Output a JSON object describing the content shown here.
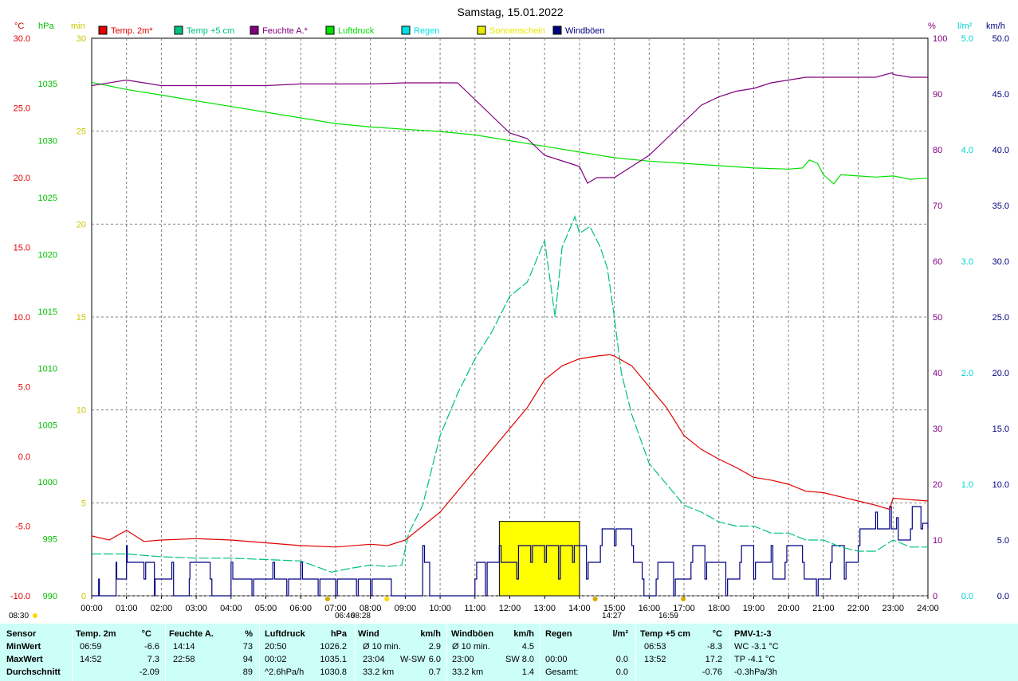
{
  "chart_data": {
    "type": "line",
    "title": "Samstag, 15.01.2022",
    "axes": {
      "x": {
        "range": [
          0,
          24
        ],
        "tick_labels": [
          "00:00",
          "01:00",
          "02:00",
          "03:00",
          "04:00",
          "05:00",
          "06:00",
          "07:00",
          "08:00",
          "09:00",
          "10:00",
          "11:00",
          "12:00",
          "13:00",
          "14:00",
          "15:00",
          "16:00",
          "17:00",
          "18:00",
          "19:00",
          "20:00",
          "21:00",
          "22:00",
          "23:00",
          "24:00"
        ]
      },
      "temp": {
        "unit": "°C",
        "range": [
          -10,
          30
        ],
        "ticks": [
          "30.0",
          "25.0",
          "20.0",
          "15.0",
          "10.0",
          "5.0",
          "0.0",
          "-5.0",
          "-10.0"
        ],
        "color": "#e00000"
      },
      "pressure": {
        "unit": "hPa",
        "range": [
          990,
          1039
        ],
        "ticks": [
          "1035",
          "1030",
          "1025",
          "1020",
          "1015",
          "1010",
          "1005",
          "1000",
          "995",
          "990"
        ],
        "color": "#00c000"
      },
      "sunshine": {
        "unit": "min",
        "range": [
          0,
          30
        ],
        "ticks": [
          "30",
          "25",
          "20",
          "15",
          "10",
          "5",
          "0"
        ],
        "color": "#e8e800"
      },
      "humidity": {
        "unit": "%",
        "range": [
          0,
          100
        ],
        "ticks": [
          "100",
          "90",
          "80",
          "70",
          "60",
          "50",
          "40",
          "30",
          "20",
          "10",
          "0"
        ],
        "color": "#800080"
      },
      "rain": {
        "unit": "l/m²",
        "range": [
          0,
          5
        ],
        "ticks": [
          "5.0",
          "4.0",
          "3.0",
          "2.0",
          "1.0",
          "0.0"
        ],
        "color": "#00e0e0"
      },
      "wind": {
        "unit": "km/h",
        "range": [
          0,
          50
        ],
        "ticks": [
          "50.0",
          "45.0",
          "40.0",
          "35.0",
          "30.0",
          "25.0",
          "20.0",
          "15.0",
          "10.0",
          "5.0",
          "0.0"
        ],
        "color": "#000080"
      }
    },
    "legend": [
      {
        "name": "Temp. 2m*",
        "color": "#e00000"
      },
      {
        "name": "Temp +5 cm",
        "color": "#00c080"
      },
      {
        "name": "Feuchte A.*",
        "color": "#800080"
      },
      {
        "name": "Luftdruck",
        "color": "#00e000"
      },
      {
        "name": "Regen",
        "color": "#00e0e0"
      },
      {
        "name": "Sonnenschein",
        "color": "#e8e800"
      },
      {
        "name": "Windböen",
        "color": "#000080"
      }
    ],
    "series": [
      {
        "name": "Temp. 2m*",
        "axis": "temp",
        "color": "#e00000",
        "x": [
          0,
          0.5,
          1,
          1.5,
          2,
          3,
          4,
          5,
          6,
          7,
          8,
          8.5,
          9,
          9.5,
          10,
          10.5,
          11,
          11.5,
          12,
          12.5,
          13,
          13.5,
          14,
          14.5,
          14.87,
          15,
          15.5,
          16,
          16.5,
          17,
          17.5,
          18,
          18.5,
          19,
          19.5,
          20,
          20.5,
          21,
          21.5,
          22,
          22.5,
          22.9,
          23,
          23.5,
          24
        ],
        "y": [
          -5.7,
          -6.0,
          -5.3,
          -6.1,
          -6.0,
          -5.9,
          -6.0,
          -6.2,
          -6.4,
          -6.5,
          -6.3,
          -6.4,
          -6.0,
          -5.0,
          -4.0,
          -2.5,
          -1.0,
          0.5,
          2.0,
          3.5,
          5.5,
          6.5,
          7.0,
          7.2,
          7.3,
          7.2,
          6.5,
          5.0,
          3.5,
          1.5,
          0.5,
          -0.2,
          -0.8,
          -1.5,
          -1.7,
          -2.0,
          -2.5,
          -2.6,
          -2.9,
          -3.2,
          -3.5,
          -3.8,
          -3.0,
          -3.1,
          -3.2
        ]
      },
      {
        "name": "Temp +5 cm",
        "axis": "temp",
        "color": "#00c080",
        "x": [
          0,
          1,
          2,
          3,
          4,
          5,
          6,
          6.88,
          7.5,
          8,
          8.5,
          8.9,
          9.1,
          9.5,
          10,
          10.5,
          11,
          11.5,
          12,
          12.5,
          13,
          13.3,
          13.5,
          13.87,
          14,
          14.3,
          14.6,
          14.8,
          15,
          15.2,
          15.5,
          16,
          16.5,
          17,
          17.5,
          18,
          18.5,
          19,
          19.5,
          20,
          20.5,
          21,
          21.5,
          22,
          22.5,
          23,
          23.5,
          24
        ],
        "y": [
          -7.0,
          -7.0,
          -7.2,
          -7.3,
          -7.3,
          -7.4,
          -7.5,
          -8.3,
          -8.0,
          -7.8,
          -7.9,
          -7.8,
          -5.5,
          -3.5,
          1.5,
          4.5,
          7.0,
          9.0,
          11.5,
          12.5,
          15.5,
          10.0,
          15.0,
          17.2,
          16.0,
          16.5,
          15.0,
          13.5,
          10.0,
          6.0,
          3.0,
          -0.5,
          -2.0,
          -3.5,
          -4.0,
          -4.7,
          -5.0,
          -5.0,
          -5.5,
          -5.5,
          -6.0,
          -6.0,
          -6.5,
          -6.8,
          -6.8,
          -6.0,
          -6.5,
          -6.5
        ]
      },
      {
        "name": "Feuchte A.*",
        "axis": "humidity",
        "color": "#800080",
        "x": [
          0,
          1,
          2,
          3,
          4,
          5,
          6,
          7,
          8,
          9,
          10,
          10.5,
          11,
          11.5,
          12,
          12.5,
          13,
          13.5,
          14,
          14.23,
          14.5,
          15,
          15.5,
          16,
          16.5,
          17,
          17.5,
          18,
          18.5,
          19,
          19.5,
          20,
          20.5,
          21,
          21.5,
          22,
          22.5,
          22.97,
          23,
          23.5,
          24
        ],
        "y": [
          91.5,
          92.5,
          91.5,
          91.5,
          91.5,
          91.5,
          91.8,
          91.8,
          91.8,
          92.0,
          92.0,
          92.0,
          89.0,
          86.0,
          83.0,
          82.0,
          79.0,
          78.0,
          77.0,
          74.0,
          75.0,
          75.0,
          77.0,
          79.0,
          82.0,
          85.0,
          88.0,
          89.5,
          90.5,
          91.0,
          92.0,
          92.5,
          93.0,
          93.0,
          93.0,
          93.0,
          93.0,
          93.8,
          93.5,
          93.0,
          93.0
        ]
      },
      {
        "name": "Luftdruck",
        "axis": "pressure",
        "color": "#00e000",
        "x": [
          0,
          0.03,
          1,
          2,
          3,
          4,
          5,
          6,
          7,
          8,
          9,
          10,
          11,
          12,
          13,
          14,
          15,
          16,
          17,
          18,
          19,
          20,
          20.4,
          20.6,
          20.83,
          21,
          21.3,
          21.5,
          22,
          22.5,
          23,
          23.5,
          24
        ],
        "y": [
          1035.1,
          1035.1,
          1034.5,
          1034.0,
          1033.5,
          1033.0,
          1032.5,
          1032.0,
          1031.5,
          1031.2,
          1031.0,
          1030.8,
          1030.5,
          1030.0,
          1029.5,
          1029.0,
          1028.5,
          1028.2,
          1028.0,
          1027.8,
          1027.6,
          1027.5,
          1027.6,
          1028.3,
          1028.0,
          1027.0,
          1026.2,
          1027.0,
          1026.9,
          1026.8,
          1026.9,
          1026.6,
          1026.7
        ]
      },
      {
        "name": "Windböen",
        "axis": "wind",
        "type": "step",
        "color": "#000080",
        "x": [
          0,
          0.2,
          0.22,
          0.7,
          0.72,
          1.0,
          1.02,
          1.5,
          1.55,
          1.8,
          1.82,
          2.3,
          2.35,
          2.8,
          2.82,
          3.4,
          3.45,
          4.0,
          4.05,
          4.6,
          4.65,
          5.2,
          5.25,
          5.6,
          5.65,
          6.0,
          6.05,
          6.5,
          6.55,
          7.0,
          7.05,
          7.6,
          7.65,
          8.0,
          8.05,
          8.6,
          8.65,
          9.5,
          9.55,
          9.7,
          9.75,
          11.0,
          11.05,
          11.3,
          11.35,
          11.7,
          11.75,
          12.2,
          12.25,
          12.6,
          12.65,
          13.0,
          13.05,
          13.4,
          13.45,
          13.8,
          13.85,
          14.2,
          14.25,
          14.6,
          14.65,
          15.0,
          15.05,
          15.5,
          15.55,
          15.8,
          15.85,
          16.2,
          16.25,
          16.7,
          16.75,
          17.2,
          17.25,
          17.6,
          17.65,
          18.2,
          18.25,
          18.6,
          18.65,
          19.0,
          19.05,
          19.5,
          19.55,
          19.9,
          19.95,
          20.4,
          20.45,
          20.8,
          20.85,
          21.2,
          21.25,
          21.6,
          21.65,
          22.0,
          22.05,
          22.5,
          22.55,
          22.9,
          22.95,
          23.1,
          23.15,
          23.5,
          23.55,
          23.8,
          23.85,
          24
        ],
        "y": [
          0,
          1.5,
          0,
          3.0,
          1.5,
          4.5,
          3.0,
          1.5,
          3.0,
          0,
          1.5,
          3.0,
          0,
          1.5,
          3.0,
          1.5,
          0,
          3.0,
          1.5,
          0,
          1.5,
          3.0,
          1.5,
          0,
          1.5,
          3.0,
          1.5,
          0,
          1.5,
          0,
          1.5,
          0,
          1.5,
          0,
          1.5,
          0,
          0,
          4.5,
          3.0,
          0,
          0,
          1.5,
          3.0,
          0,
          3.0,
          4.5,
          3.0,
          1.5,
          4.5,
          3.0,
          4.5,
          3.0,
          4.5,
          1.5,
          4.5,
          3.0,
          4.5,
          1.5,
          3.0,
          4.5,
          6.0,
          4.5,
          6.0,
          4.5,
          3.0,
          1.5,
          0,
          1.5,
          3.0,
          0,
          1.5,
          3.0,
          4.5,
          1.5,
          3.0,
          0,
          1.5,
          3.0,
          4.5,
          1.5,
          3.0,
          4.5,
          1.5,
          3.0,
          4.5,
          3.0,
          1.5,
          0,
          1.5,
          3.0,
          4.5,
          1.5,
          3.0,
          4.5,
          6.0,
          7.5,
          6.0,
          8.0,
          6.0,
          7.0,
          5.0,
          6.0,
          8.0,
          6.0,
          6.5,
          6.0
        ]
      },
      {
        "name": "Sonnenschein",
        "axis": "sunshine",
        "type": "bar",
        "color": "#ffff00",
        "segments": [
          {
            "from": 11.7,
            "to": 14.0,
            "value": 4.0
          }
        ]
      }
    ],
    "markers": [
      {
        "label": "08:30",
        "x": 8.5
      },
      {
        "label": "06:46",
        "x": 6.77
      },
      {
        "label": "08:28",
        "x": 8.47
      },
      {
        "label": "14:27",
        "x": 14.45
      },
      {
        "label": "16:59",
        "x": 16.98
      }
    ]
  },
  "stats": {
    "headers": [
      "Sensor",
      "Temp. 2m",
      "°C",
      "Feuchte A.",
      "%",
      "Luftdruck",
      "hPa",
      "Wind",
      "km/h",
      "Windböen",
      "km/h",
      "Regen",
      "l/m²",
      "Temp +5 cm",
      "°C",
      "PMV-1:-3"
    ],
    "rows": [
      {
        "label": "MinWert",
        "temp_time": "06:59",
        "temp_val": "-6.6",
        "hum_time": "14:14",
        "hum_val": "73",
        "press_time": "20:50",
        "press_val": "1026.2",
        "wind_label": "Ø 10 min.",
        "wind_val": "2.9",
        "gust_label": "Ø 10 min.",
        "gust_val": "4.5",
        "rain_time": "",
        "rain_val": "",
        "t5_time": "06:53",
        "t5_val": "-8.3",
        "pmv": "WC -3.1 °C"
      },
      {
        "label": "MaxWert",
        "temp_time": "14:52",
        "temp_val": "7.3",
        "hum_time": "22:58",
        "hum_val": "94",
        "press_time": "00:02",
        "press_val": "1035.1",
        "wind_label": "23:04",
        "wind_dir": "W-SW",
        "wind_val": "6.0",
        "gust_label": "23:00",
        "gust_dir": "SW",
        "gust_val": "8.0",
        "rain_time": "00:00",
        "rain_val": "0.0",
        "t5_time": "13:52",
        "t5_val": "17.2",
        "pmv": "TP -4.1 °C"
      },
      {
        "label": "Durchschnitt",
        "temp_time": "",
        "temp_val": "-2.09",
        "hum_time": "",
        "hum_val": "89",
        "press_time": "^2.6hPa/h",
        "press_val": "1030.8",
        "wind_label": "33.2 km",
        "wind_val": "0.7",
        "gust_label": "33.2 km",
        "gust_val": "1.4",
        "rain_time": "Gesamt:",
        "rain_val": "0.0",
        "t5_time": "",
        "t5_val": "-0.76",
        "pmv": "-0.3hPa/3h"
      }
    ]
  }
}
